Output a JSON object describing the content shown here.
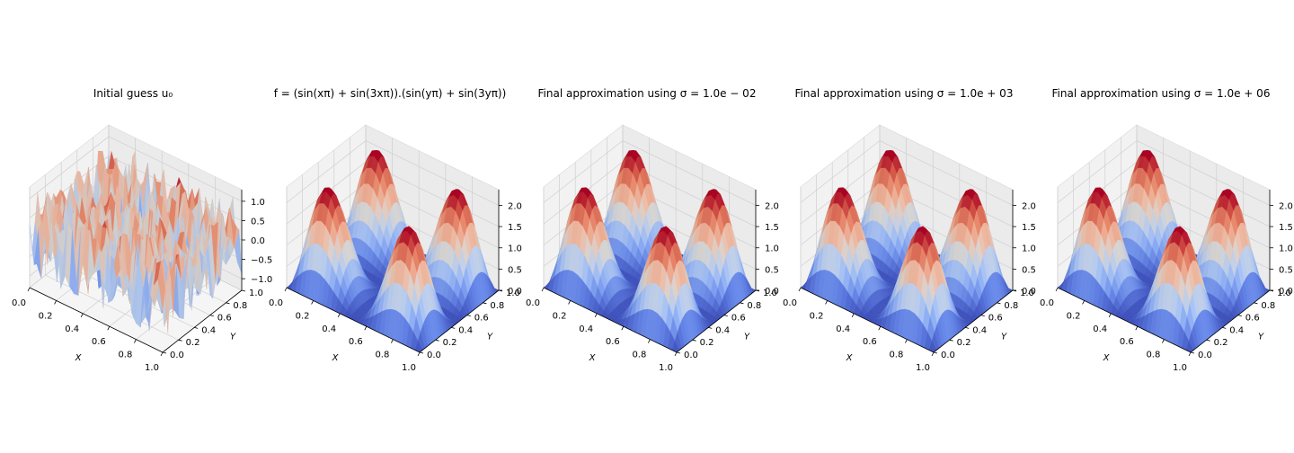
{
  "chart_data": [
    {
      "type": "surface3d",
      "title": "Initial guess u₀",
      "xlabel": "X",
      "ylabel": "Y",
      "zlabel": "",
      "x_ticks": [
        "0.0",
        "0.2",
        "0.4",
        "0.6",
        "0.8",
        "1.0"
      ],
      "y_ticks": [
        "0.0",
        "0.2",
        "0.4",
        "0.6",
        "0.8",
        "1.0"
      ],
      "z_ticks": [
        "−1.0",
        "−0.5",
        "0.0",
        "0.5",
        "1.0"
      ],
      "z_tick_values": [
        -1.0,
        -0.5,
        0.0,
        0.5,
        1.0
      ],
      "zlim": [
        -1.3,
        1.3
      ],
      "surface": "random noise in [-1, 1] on a 31×31 grid",
      "colormap": "coolwarm"
    },
    {
      "type": "surface3d",
      "title": "f = (sin(xπ) + sin(3xπ)).(sin(yπ) + sin(3yπ))",
      "xlabel": "X",
      "ylabel": "Y",
      "zlabel": "",
      "x_ticks": [
        "0.0",
        "0.2",
        "0.4",
        "0.6",
        "0.8",
        "1.0"
      ],
      "y_ticks": [
        "0.0",
        "0.2",
        "0.4",
        "0.6",
        "0.8",
        "1.0"
      ],
      "z_ticks": [
        "0.0",
        "0.5",
        "1.0",
        "1.5",
        "2.0"
      ],
      "z_tick_values": [
        0.0,
        0.5,
        1.0,
        1.5,
        2.0
      ],
      "zlim": [
        0.0,
        2.37
      ],
      "surface": "(sin(πx)+sin(3πx))·(sin(πy)+sin(3πy))",
      "colormap": "coolwarm"
    },
    {
      "type": "surface3d",
      "title": "Final approximation using σ = 1.0e − 02",
      "xlabel": "X",
      "ylabel": "Y",
      "zlabel": "",
      "x_ticks": [
        "0.0",
        "0.2",
        "0.4",
        "0.6",
        "0.8",
        "1.0"
      ],
      "y_ticks": [
        "0.0",
        "0.2",
        "0.4",
        "0.6",
        "0.8",
        "1.0"
      ],
      "z_ticks": [
        "0.0",
        "0.5",
        "1.0",
        "1.5",
        "2.0"
      ],
      "z_tick_values": [
        0.0,
        0.5,
        1.0,
        1.5,
        2.0
      ],
      "zlim": [
        0.0,
        2.37
      ],
      "surface": "(sin(πx)+sin(3πx))·(sin(πy)+sin(3πy))",
      "colormap": "coolwarm"
    },
    {
      "type": "surface3d",
      "title": "Final approximation using σ = 1.0e + 03",
      "xlabel": "X",
      "ylabel": "Y",
      "zlabel": "",
      "x_ticks": [
        "0.0",
        "0.2",
        "0.4",
        "0.6",
        "0.8",
        "1.0"
      ],
      "y_ticks": [
        "0.0",
        "0.2",
        "0.4",
        "0.6",
        "0.8",
        "1.0"
      ],
      "z_ticks": [
        "0.0",
        "0.5",
        "1.0",
        "1.5",
        "2.0"
      ],
      "z_tick_values": [
        0.0,
        0.5,
        1.0,
        1.5,
        2.0
      ],
      "zlim": [
        0.0,
        2.37
      ],
      "surface": "(sin(πx)+sin(3πx))·(sin(πy)+sin(3πy))",
      "colormap": "coolwarm"
    },
    {
      "type": "surface3d",
      "title": "Final approximation using σ = 1.0e + 06",
      "xlabel": "X",
      "ylabel": "Y",
      "zlabel": "",
      "x_ticks": [
        "0.0",
        "0.2",
        "0.4",
        "0.6",
        "0.8",
        "1.0"
      ],
      "y_ticks": [
        "0.0",
        "0.2",
        "0.4",
        "0.6",
        "0.8",
        "1.0"
      ],
      "z_ticks": [
        "0.0",
        "0.5",
        "1.0",
        "1.5",
        "2.0"
      ],
      "z_tick_values": [
        0.0,
        0.5,
        1.0,
        1.5,
        2.0
      ],
      "zlim": [
        0.0,
        2.37
      ],
      "surface": "(sin(πx)+sin(3πx))·(sin(πy)+sin(3πy))",
      "colormap": "coolwarm"
    }
  ]
}
